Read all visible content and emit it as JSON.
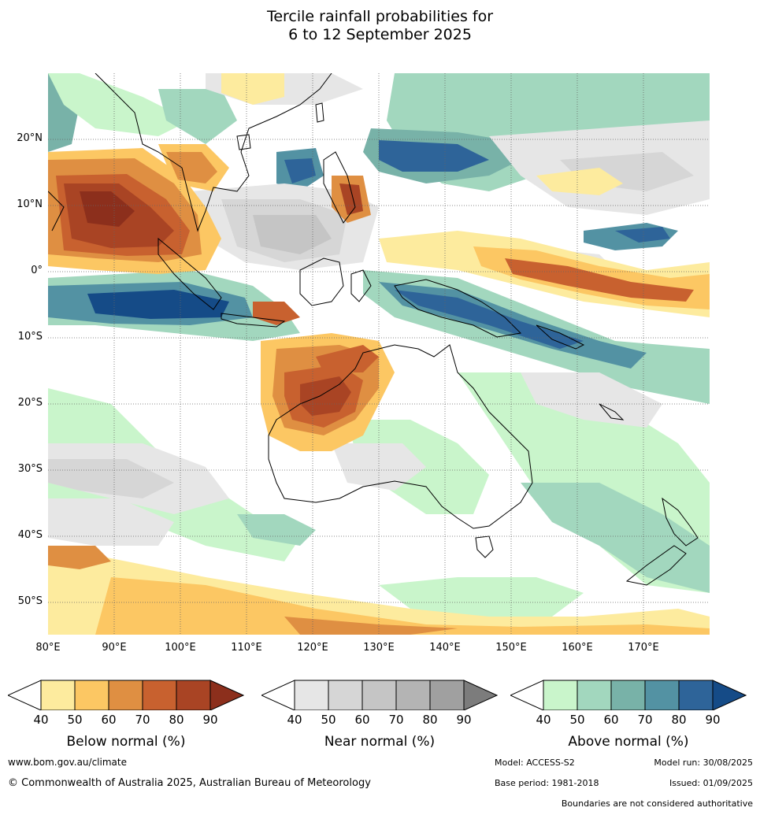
{
  "title": {
    "line1": "Tercile rainfall probabilities for",
    "line2": "6 to 12 September 2025"
  },
  "lat_labels": [
    "20°N",
    "10°N",
    "0°",
    "10°S",
    "20°S",
    "30°S",
    "40°S",
    "50°S"
  ],
  "lon_labels": [
    "80°E",
    "90°E",
    "100°E",
    "110°E",
    "120°E",
    "130°E",
    "140°E",
    "150°E",
    "160°E",
    "170°E"
  ],
  "colorbars": [
    {
      "title": "Below normal (%)",
      "ticks": [
        "40",
        "50",
        "60",
        "70",
        "80",
        "90"
      ],
      "colors": [
        "#ffffff",
        "#fdeb9e",
        "#fcc763",
        "#df8f42",
        "#c8612f",
        "#a94424",
        "#8c2f1c"
      ]
    },
    {
      "title": "Near normal (%)",
      "ticks": [
        "40",
        "50",
        "60",
        "70",
        "80",
        "90"
      ],
      "colors": [
        "#ffffff",
        "#e6e6e6",
        "#d6d6d6",
        "#c5c5c5",
        "#b4b4b4",
        "#a0a0a0",
        "#7c7c7c"
      ]
    },
    {
      "title": "Above normal (%)",
      "ticks": [
        "40",
        "50",
        "60",
        "70",
        "80",
        "90"
      ],
      "colors": [
        "#ffffff",
        "#c9f5cb",
        "#a2d7be",
        "#78b2a8",
        "#5392a3",
        "#2e6499",
        "#154b87"
      ]
    }
  ],
  "footer": {
    "website": "www.bom.gov.au/climate",
    "copyright": "© Commonwealth of Australia 2025, Australian Bureau of Meteorology",
    "model": "Model: ACCESS-S2",
    "model_run": "Model run: 30/08/2025",
    "base_period": "Base period: 1981-2018",
    "issued": "Issued: 01/09/2025",
    "disclaimer": "Boundaries are not considered authoritative"
  }
}
